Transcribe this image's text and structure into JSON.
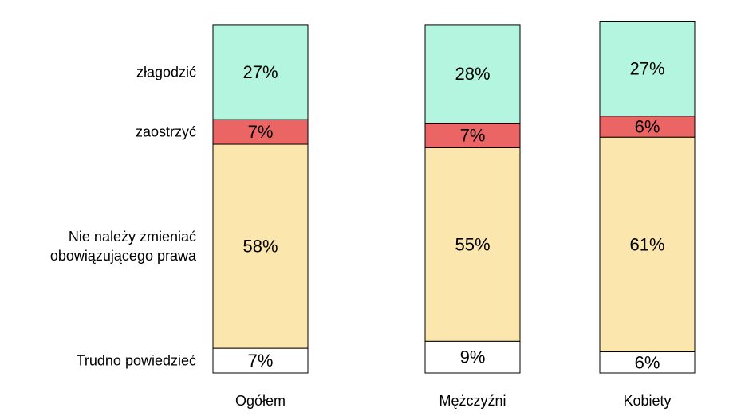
{
  "chart_data": {
    "type": "bar",
    "stacked": true,
    "categories": [
      "Ogółem",
      "Mężczyźni",
      "Kobiety"
    ],
    "stack_order": [
      "Trudno powiedzieć",
      "Nie należy zmieniać obowiązującego prawa",
      "zaostrzyć",
      "złagodzić"
    ],
    "series": [
      {
        "name": "złagodzić",
        "label_lines": [
          "złagodzić"
        ],
        "values": [
          27,
          28,
          27
        ],
        "labels": [
          "27%",
          "28%",
          "27%"
        ],
        "color": "#b3f5df"
      },
      {
        "name": "zaostrzyć",
        "label_lines": [
          "zaostrzyć"
        ],
        "values": [
          7,
          7,
          6
        ],
        "labels": [
          "7%",
          "7%",
          "6%"
        ],
        "color": "#eb6565"
      },
      {
        "name": "Nie należy zmieniać obowiązującego prawa",
        "label_lines": [
          "Nie należy zmieniać",
          "obowiązującego prawa"
        ],
        "values": [
          58,
          55,
          61
        ],
        "labels": [
          "58%",
          "55%",
          "61%"
        ],
        "color": "#fbe6ad"
      },
      {
        "name": "Trudno powiedzieć",
        "label_lines": [
          "Trudno powiedzieć"
        ],
        "values": [
          7,
          9,
          6
        ],
        "labels": [
          "7%",
          "9%",
          "6%"
        ],
        "color": "#ffffff"
      }
    ],
    "title": "",
    "xlabel": "",
    "ylabel": "",
    "grid": false,
    "legend": "left"
  }
}
